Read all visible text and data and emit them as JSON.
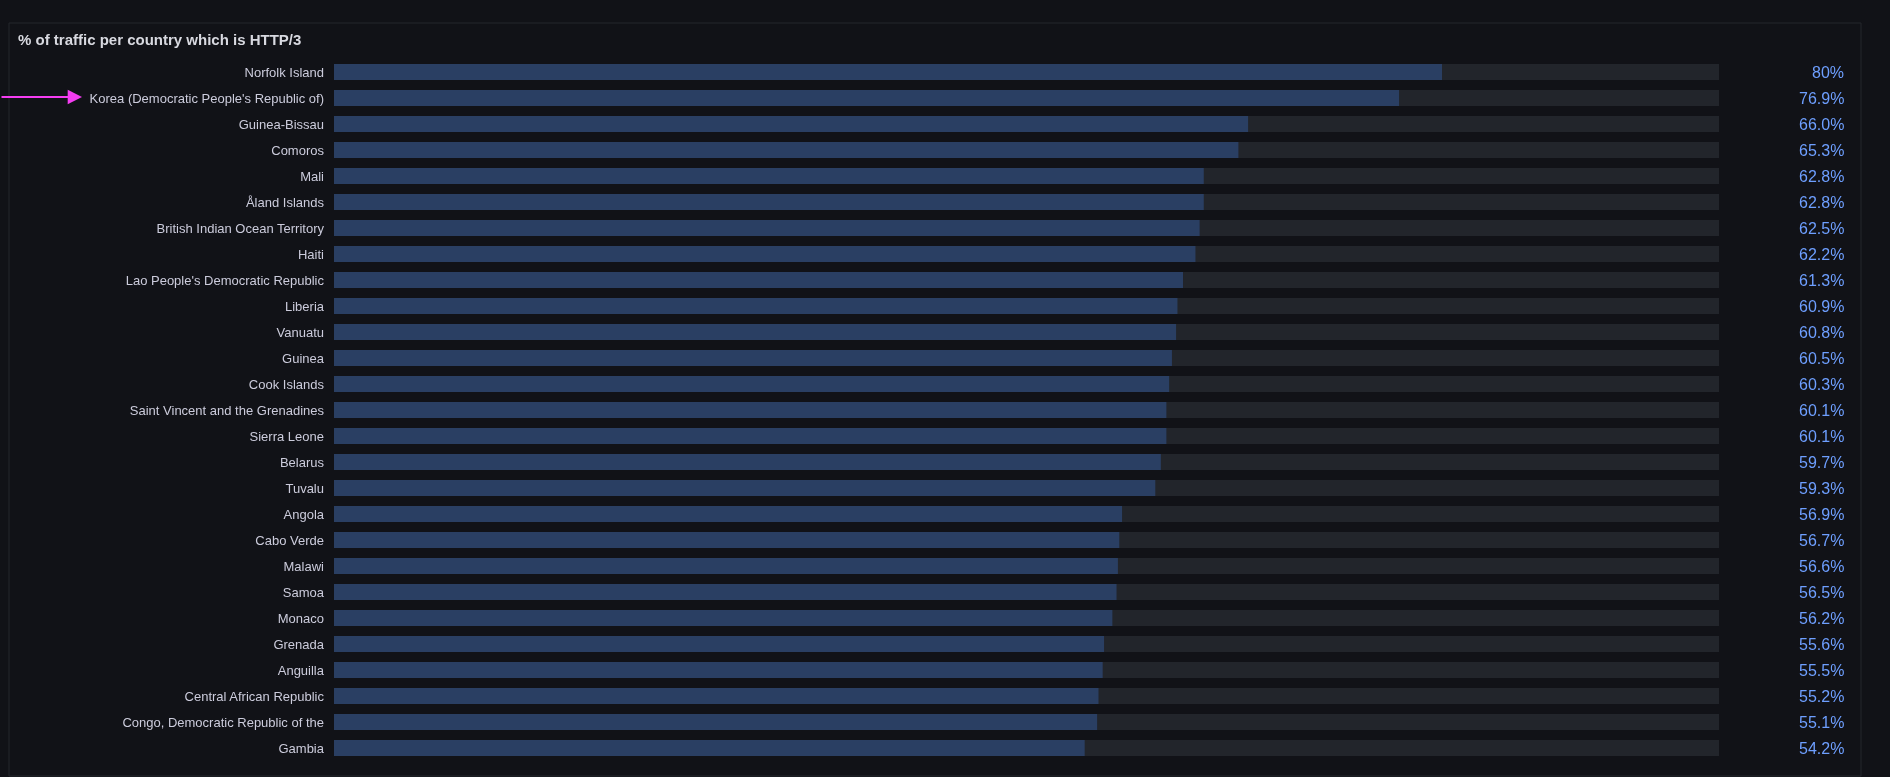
{
  "chart_data": {
    "type": "bar",
    "orientation": "horizontal",
    "title": "% of traffic per country which is HTTP/3",
    "categories": [
      "Norfolk Island",
      "Korea (Democratic People's Republic of)",
      "Guinea-Bissau",
      "Comoros",
      "Mali",
      "Åland Islands",
      "British Indian Ocean Territory",
      "Haiti",
      "Lao People's Democratic Republic",
      "Liberia",
      "Vanuatu",
      "Guinea",
      "Cook Islands",
      "Saint Vincent and the Grenadines",
      "Sierra Leone",
      "Belarus",
      "Tuvalu",
      "Angola",
      "Cabo Verde",
      "Malawi",
      "Samoa",
      "Monaco",
      "Grenada",
      "Anguilla",
      "Central African Republic",
      "Congo, Democratic Republic of the",
      "Gambia"
    ],
    "values": [
      80,
      76.9,
      66.0,
      65.3,
      62.8,
      62.8,
      62.5,
      62.2,
      61.3,
      60.9,
      60.8,
      60.5,
      60.3,
      60.1,
      60.1,
      59.7,
      59.3,
      56.9,
      56.7,
      56.6,
      56.5,
      56.2,
      55.6,
      55.5,
      55.2,
      55.1,
      54.2
    ],
    "value_labels": [
      "80%",
      "76.9%",
      "66.0%",
      "65.3%",
      "62.8%",
      "62.8%",
      "62.5%",
      "62.2%",
      "61.3%",
      "60.9%",
      "60.8%",
      "60.5%",
      "60.3%",
      "60.1%",
      "60.1%",
      "59.7%",
      "59.3%",
      "56.9%",
      "56.7%",
      "56.6%",
      "56.5%",
      "56.2%",
      "55.6%",
      "55.5%",
      "55.2%",
      "55.1%",
      "54.2%"
    ],
    "color": "#2a3f63",
    "xlim": [
      0,
      100
    ],
    "tick_labels": "y"
  }
}
